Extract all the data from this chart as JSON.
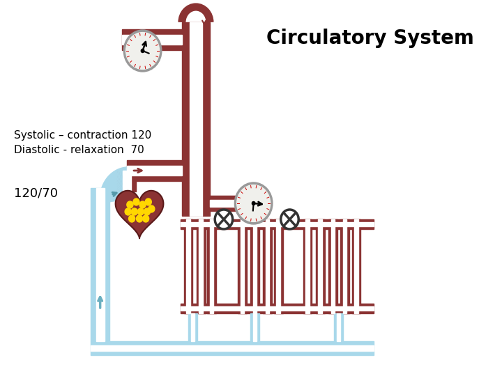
{
  "title": "Circulatory System",
  "title_fontsize": 20,
  "title_fontweight": "bold",
  "text_systolic": "Systolic – contraction 120",
  "text_diastolic": "Diastolic - relaxation  70",
  "text_ratio": "120/70",
  "text_fontsize": 11,
  "pipe_color": "#8B3333",
  "pipe_inner": "#FFFFFF",
  "vein_color": "#A8D8EA",
  "vein_inner": "#FFFFFF",
  "background": "#FFFFFF",
  "heart_color": "#8B3333",
  "heart_spot_color": "#FFD700",
  "gauge_face": "#F0F0EC",
  "gauge_ring": "#999999",
  "gauge_tick_color": "#CC0000",
  "valve_color": "#333333",
  "text_color": "#000000"
}
